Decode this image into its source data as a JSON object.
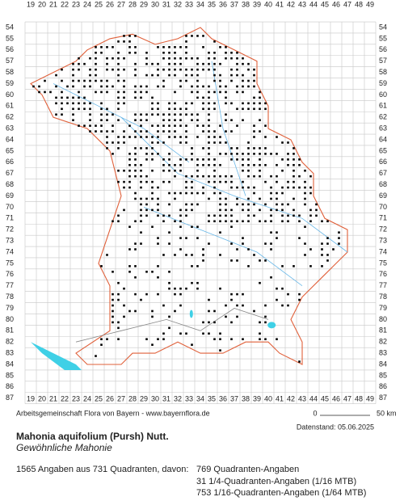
{
  "map": {
    "columns": [
      19,
      20,
      21,
      22,
      23,
      24,
      25,
      26,
      27,
      28,
      29,
      30,
      31,
      32,
      33,
      34,
      35,
      36,
      37,
      38,
      39,
      40,
      41,
      42,
      43,
      44,
      45,
      46,
      47,
      48,
      49
    ],
    "rows": [
      54,
      55,
      56,
      57,
      58,
      59,
      60,
      61,
      62,
      63,
      64,
      65,
      66,
      67,
      68,
      69,
      70,
      71,
      72,
      73,
      74,
      75,
      76,
      77,
      78,
      79,
      80,
      81,
      82,
      83,
      84,
      85,
      86,
      87
    ]
  },
  "footer": {
    "credit": "Arbeitsgemeinschaft Flora von Bayern - www.bayernflora.de",
    "scale_start": "0",
    "scale_end": "50 km",
    "date": "Datenstand: 05.06.2025"
  },
  "species": {
    "scientific": "Mahonia aquifolium (Pursh) Nutt.",
    "common": "Gewöhnliche Mahonie"
  },
  "stats": {
    "summary": "1565 Angaben aus 731 Quadranten, davon:",
    "lines": [
      "769 Quadranten-Angaben",
      "31 1/4-Quadranten-Angaben (1/16 MTB)",
      "753 1/16-Quadranten-Angaben (1/64 MTB)"
    ]
  }
}
